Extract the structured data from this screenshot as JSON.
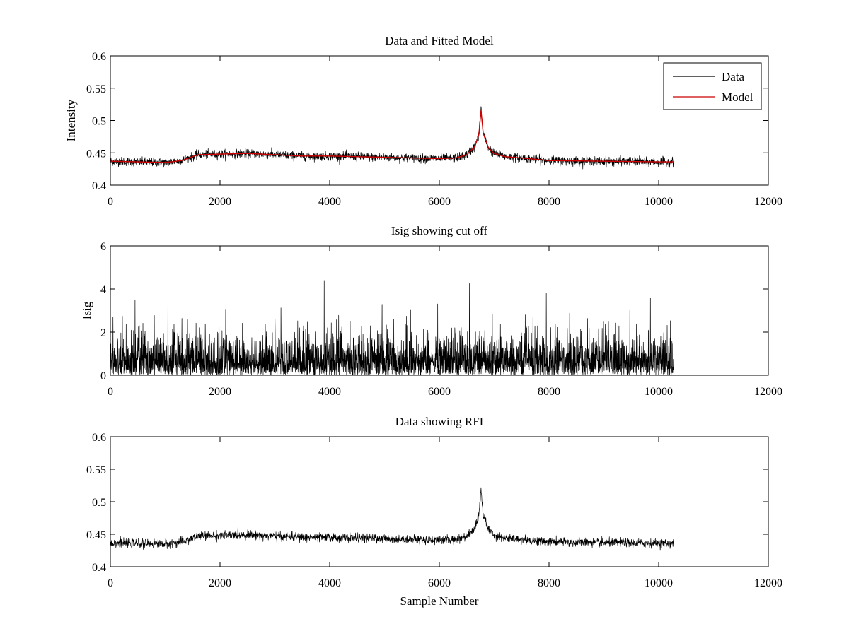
{
  "figure": {
    "background": "#ffffff"
  },
  "chart_data": [
    {
      "type": "line",
      "title": "Data and Fitted Model",
      "xlabel": "",
      "ylabel": "Intensity",
      "xlim": [
        0,
        12000
      ],
      "ylim": [
        0.4,
        0.6
      ],
      "xticks": [
        0,
        2000,
        4000,
        6000,
        8000,
        10000,
        12000
      ],
      "xtick_labels": [
        "0",
        "2000",
        "4000",
        "6000",
        "8000",
        "10000",
        "12000"
      ],
      "yticks": [
        0.4,
        0.45,
        0.5,
        0.55,
        0.6
      ],
      "ytick_labels": [
        "0.4",
        "0.45",
        "0.5",
        "0.55",
        "0.6"
      ],
      "legend": {
        "position": "top-right",
        "entries": [
          "Data",
          "Model"
        ]
      },
      "series": [
        {
          "name": "Data",
          "color": "#000000",
          "kind": "noisy",
          "noise_amplitude": 0.006,
          "x": [
            0,
            500,
            1000,
            1300,
            1600,
            2000,
            2500,
            3000,
            3500,
            4000,
            4500,
            5000,
            5500,
            6000,
            6300,
            6500,
            6650,
            6720,
            6760,
            6800,
            6900,
            7000,
            7200,
            7500,
            8000,
            9000,
            10000,
            10280
          ],
          "y": [
            0.437,
            0.436,
            0.435,
            0.438,
            0.447,
            0.448,
            0.449,
            0.447,
            0.445,
            0.445,
            0.444,
            0.443,
            0.442,
            0.441,
            0.442,
            0.447,
            0.46,
            0.478,
            0.52,
            0.48,
            0.457,
            0.449,
            0.444,
            0.442,
            0.438,
            0.437,
            0.436,
            0.436
          ]
        },
        {
          "name": "Model",
          "color": "#cc0000",
          "kind": "smooth",
          "x": [
            0,
            500,
            1000,
            1300,
            1600,
            2000,
            2500,
            3000,
            3500,
            4000,
            4500,
            5000,
            5500,
            6000,
            6300,
            6500,
            6650,
            6720,
            6760,
            6800,
            6900,
            7000,
            7200,
            7500,
            8000,
            9000,
            10000,
            10280
          ],
          "y": [
            0.437,
            0.436,
            0.435,
            0.438,
            0.447,
            0.448,
            0.449,
            0.447,
            0.445,
            0.445,
            0.444,
            0.443,
            0.442,
            0.441,
            0.442,
            0.447,
            0.46,
            0.478,
            0.515,
            0.48,
            0.457,
            0.449,
            0.444,
            0.442,
            0.438,
            0.437,
            0.436,
            0.436
          ]
        }
      ]
    },
    {
      "type": "line",
      "title": "Isig showing cut off",
      "xlabel": "",
      "ylabel": "Isig",
      "xlim": [
        0,
        12000
      ],
      "ylim": [
        0,
        6
      ],
      "xticks": [
        0,
        2000,
        4000,
        6000,
        8000,
        10000,
        12000
      ],
      "xtick_labels": [
        "0",
        "2000",
        "4000",
        "6000",
        "8000",
        "10000",
        "12000"
      ],
      "yticks": [
        0,
        2,
        4,
        6
      ],
      "ytick_labels": [
        "0",
        "2",
        "4",
        "6"
      ],
      "series": [
        {
          "name": "Isig",
          "color": "#000000",
          "kind": "abs-noise",
          "x_range": [
            0,
            10280
          ],
          "typical_max": 2.4,
          "spikes": [
            {
              "x": 3900,
              "y": 4.4
            },
            {
              "x": 6550,
              "y": 4.25
            },
            {
              "x": 7950,
              "y": 3.8
            },
            {
              "x": 9850,
              "y": 3.6
            },
            {
              "x": 1050,
              "y": 3.7
            },
            {
              "x": 450,
              "y": 3.5
            }
          ]
        }
      ]
    },
    {
      "type": "line",
      "title": "Data showing RFI",
      "xlabel": "Sample Number",
      "ylabel": "",
      "xlim": [
        0,
        12000
      ],
      "ylim": [
        0.4,
        0.6
      ],
      "xticks": [
        0,
        2000,
        4000,
        6000,
        8000,
        10000,
        12000
      ],
      "xtick_labels": [
        "0",
        "2000",
        "4000",
        "6000",
        "8000",
        "10000",
        "12000"
      ],
      "yticks": [
        0.4,
        0.45,
        0.5,
        0.55,
        0.6
      ],
      "ytick_labels": [
        "0.4",
        "0.45",
        "0.5",
        "0.55",
        "0.6"
      ],
      "series": [
        {
          "name": "Data",
          "color": "#000000",
          "kind": "noisy",
          "noise_amplitude": 0.006,
          "x": [
            0,
            500,
            1000,
            1300,
            1600,
            2000,
            2500,
            3000,
            3500,
            4000,
            4500,
            5000,
            5500,
            6000,
            6300,
            6500,
            6650,
            6720,
            6760,
            6800,
            6900,
            7000,
            7200,
            7500,
            8000,
            9000,
            10000,
            10280
          ],
          "y": [
            0.437,
            0.436,
            0.435,
            0.438,
            0.447,
            0.448,
            0.449,
            0.447,
            0.445,
            0.445,
            0.444,
            0.443,
            0.442,
            0.441,
            0.442,
            0.447,
            0.46,
            0.478,
            0.52,
            0.48,
            0.457,
            0.449,
            0.444,
            0.442,
            0.438,
            0.437,
            0.436,
            0.436
          ]
        }
      ]
    }
  ]
}
